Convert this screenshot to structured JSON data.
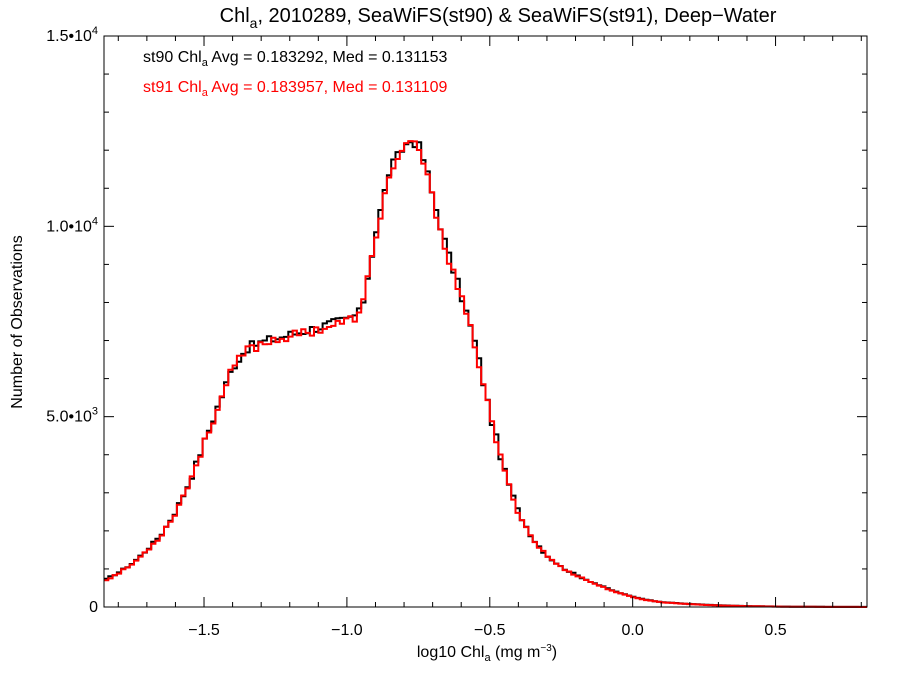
{
  "chart_data": {
    "type": "line",
    "style": "step-histogram",
    "title": {
      "prefix": "Chl",
      "sub": "a",
      "rest": ", 2010289, SeaWiFS(st90) & SeaWiFS(st91), Deep−Water"
    },
    "xlabel": {
      "prefix": "log10 Chl",
      "sub": "a",
      "units_pre": " (mg m",
      "units_sup": "−3",
      "units_post": ")"
    },
    "ylabel": "Number of Observations",
    "xlim": [
      -1.85,
      0.82
    ],
    "ylim": [
      0,
      15000
    ],
    "x_ticks": [
      {
        "value": -1.5,
        "label": "−1.5"
      },
      {
        "value": -1.0,
        "label": "−1.0"
      },
      {
        "value": -0.5,
        "label": "−0.5"
      },
      {
        "value": 0.0,
        "label": "0.0"
      },
      {
        "value": 0.5,
        "label": "0.5"
      }
    ],
    "y_ticks": [
      {
        "value": 0,
        "label": "0",
        "exp": ""
      },
      {
        "value": 5000,
        "label": "5.0•10",
        "exp": "3"
      },
      {
        "value": 10000,
        "label": "1.0•10",
        "exp": "4"
      },
      {
        "value": 15000,
        "label": "1.5•10",
        "exp": "4"
      }
    ],
    "grid": false,
    "bin_width": 0.015,
    "annotations": [
      {
        "prefix": "st90 Chl",
        "sub": "a",
        "rest": " Avg = 0.183292, Med = 0.131153",
        "color": "#000000"
      },
      {
        "prefix": "st91 Chl",
        "sub": "a",
        "rest": " Avg = 0.183957, Med = 0.131109",
        "color": "#ff0000"
      }
    ],
    "series": [
      {
        "name": "st90",
        "color": "#000000",
        "x": [
          -1.85,
          -1.8,
          -1.75,
          -1.7,
          -1.65,
          -1.6,
          -1.55,
          -1.5,
          -1.45,
          -1.4,
          -1.35,
          -1.3,
          -1.25,
          -1.2,
          -1.15,
          -1.1,
          -1.05,
          -1.0,
          -0.95,
          -0.9,
          -0.85,
          -0.8,
          -0.775,
          -0.75,
          -0.725,
          -0.7,
          -0.675,
          -0.65,
          -0.6,
          -0.55,
          -0.5,
          -0.45,
          -0.4,
          -0.35,
          -0.3,
          -0.25,
          -0.2,
          -0.15,
          -0.1,
          -0.05,
          0.0,
          0.05,
          0.1,
          0.2,
          0.3,
          0.4,
          0.5,
          0.6,
          0.7,
          0.82
        ],
        "y": [
          700,
          900,
          1150,
          1500,
          1900,
          2500,
          3300,
          4300,
          5300,
          6300,
          6800,
          6950,
          7050,
          7150,
          7250,
          7350,
          7450,
          7550,
          7750,
          9800,
          11500,
          12100,
          12250,
          12150,
          11600,
          10800,
          10100,
          9400,
          8200,
          6900,
          5100,
          3600,
          2500,
          1800,
          1350,
          1050,
          850,
          680,
          520,
          380,
          270,
          190,
          130,
          80,
          45,
          25,
          12,
          6,
          3,
          2
        ]
      },
      {
        "name": "st91",
        "color": "#ff0000",
        "x": [
          -1.85,
          -1.8,
          -1.75,
          -1.7,
          -1.65,
          -1.6,
          -1.55,
          -1.5,
          -1.45,
          -1.4,
          -1.35,
          -1.3,
          -1.25,
          -1.2,
          -1.15,
          -1.1,
          -1.05,
          -1.0,
          -0.95,
          -0.9,
          -0.85,
          -0.8,
          -0.775,
          -0.75,
          -0.725,
          -0.7,
          -0.675,
          -0.65,
          -0.6,
          -0.55,
          -0.5,
          -0.45,
          -0.4,
          -0.35,
          -0.3,
          -0.25,
          -0.2,
          -0.15,
          -0.1,
          -0.05,
          0.0,
          0.05,
          0.1,
          0.2,
          0.3,
          0.4,
          0.5,
          0.6,
          0.7,
          0.82
        ],
        "y": [
          680,
          880,
          1130,
          1480,
          1880,
          2480,
          3280,
          4280,
          5280,
          6250,
          6750,
          6900,
          7050,
          7100,
          7200,
          7300,
          7400,
          7500,
          7700,
          9700,
          11400,
          12000,
          12200,
          12100,
          11500,
          10700,
          10000,
          9300,
          8100,
          6850,
          5050,
          3570,
          2480,
          1780,
          1340,
          1040,
          840,
          670,
          510,
          370,
          260,
          180,
          125,
          75,
          40,
          22,
          10,
          5,
          2,
          1
        ]
      }
    ]
  }
}
